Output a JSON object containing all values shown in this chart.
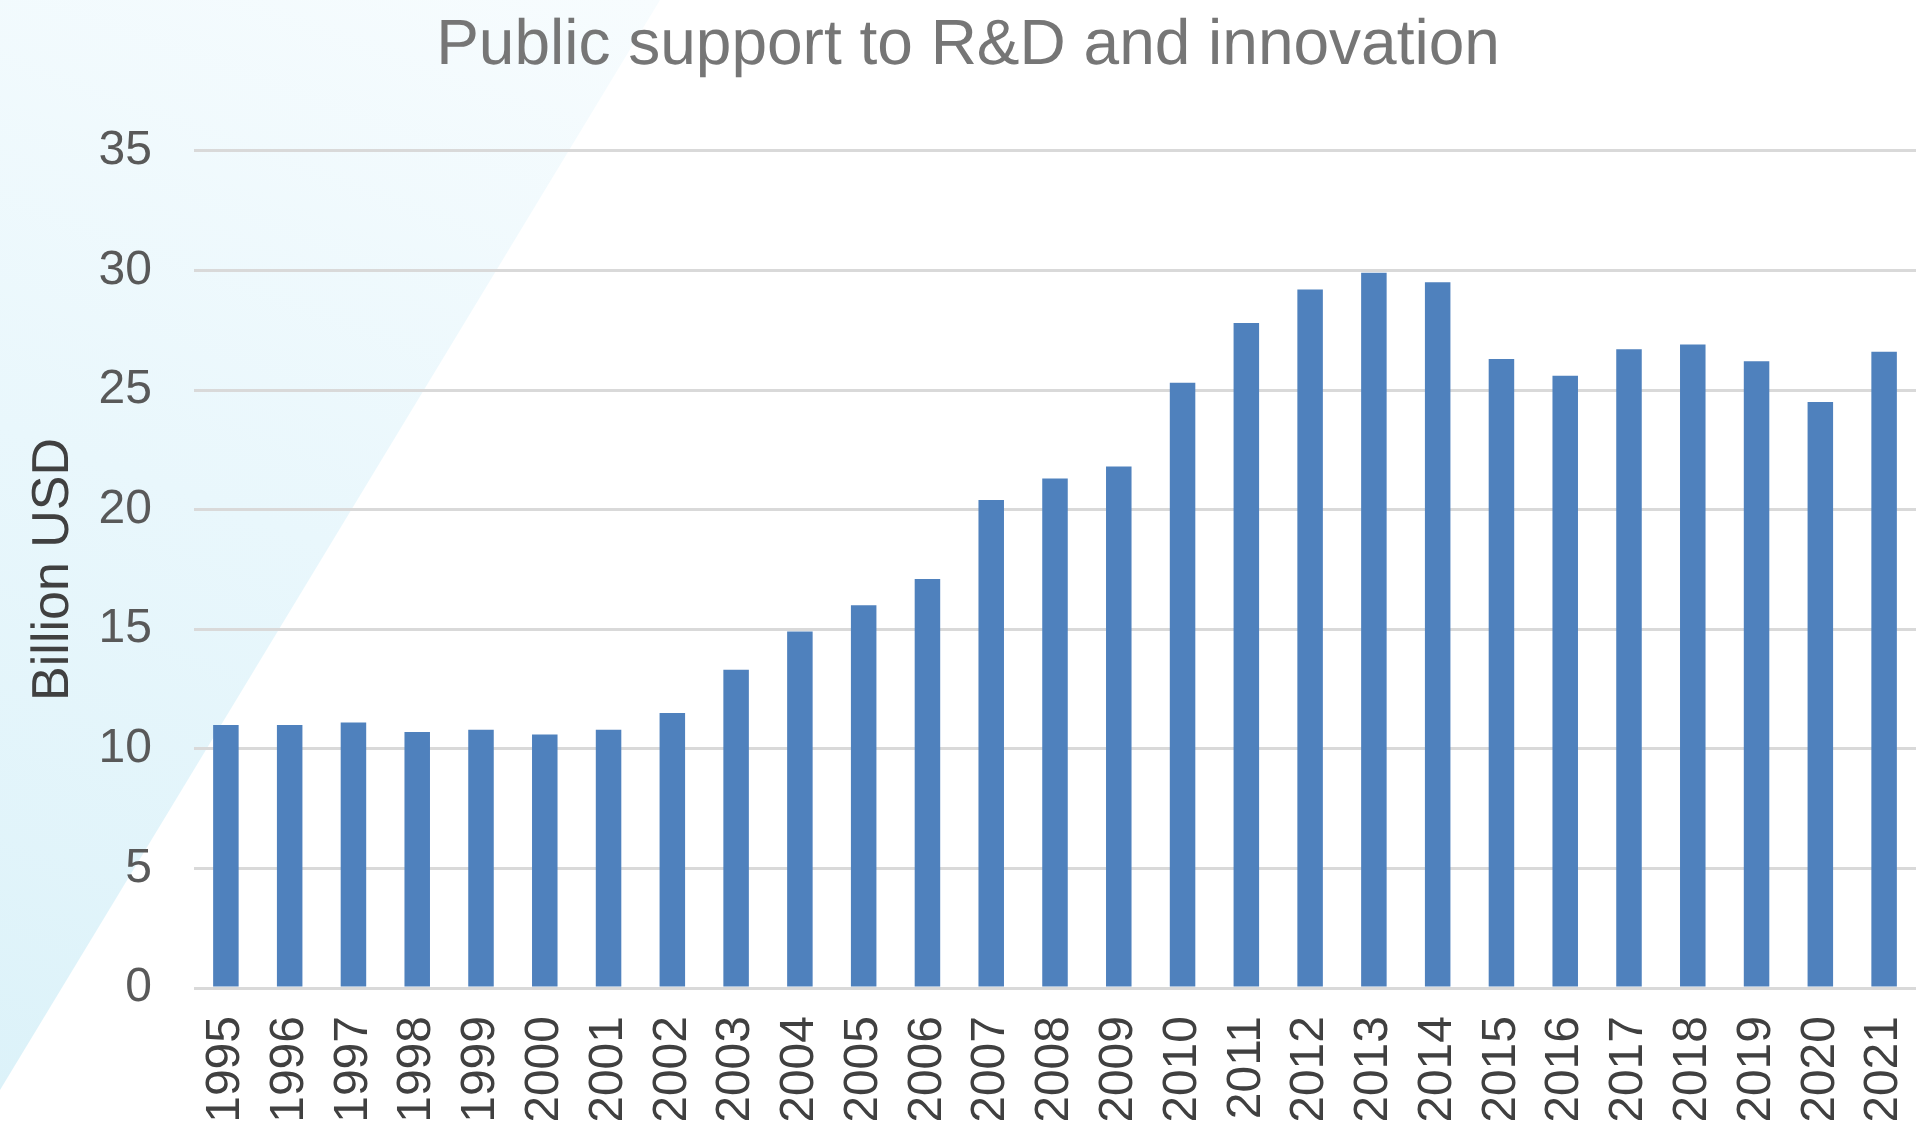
{
  "chart_data": {
    "type": "bar",
    "title": "Public support to R&D and innovation",
    "ylabel": "Billion USD",
    "categories": [
      "1995",
      "1996",
      "1997",
      "1998",
      "1999",
      "2000",
      "2001",
      "2002",
      "2003",
      "2004",
      "2005",
      "2006",
      "2007",
      "2008",
      "2009",
      "2010",
      "2011",
      "2012",
      "2013",
      "2014",
      "2015",
      "2016",
      "2017",
      "2018",
      "2019",
      "2020",
      "2021"
    ],
    "values": [
      11.0,
      11.0,
      11.1,
      10.7,
      10.8,
      10.6,
      10.8,
      11.5,
      13.3,
      14.9,
      16.0,
      17.1,
      20.4,
      21.3,
      21.8,
      25.3,
      27.8,
      29.2,
      29.9,
      29.5,
      26.3,
      25.6,
      26.7,
      26.9,
      26.2,
      24.5,
      26.6
    ],
    "color": "#4f81bd",
    "ylim": [
      0,
      35
    ],
    "yticks": [
      0,
      5,
      10,
      15,
      20,
      25,
      30,
      35
    ],
    "grid": "y"
  }
}
